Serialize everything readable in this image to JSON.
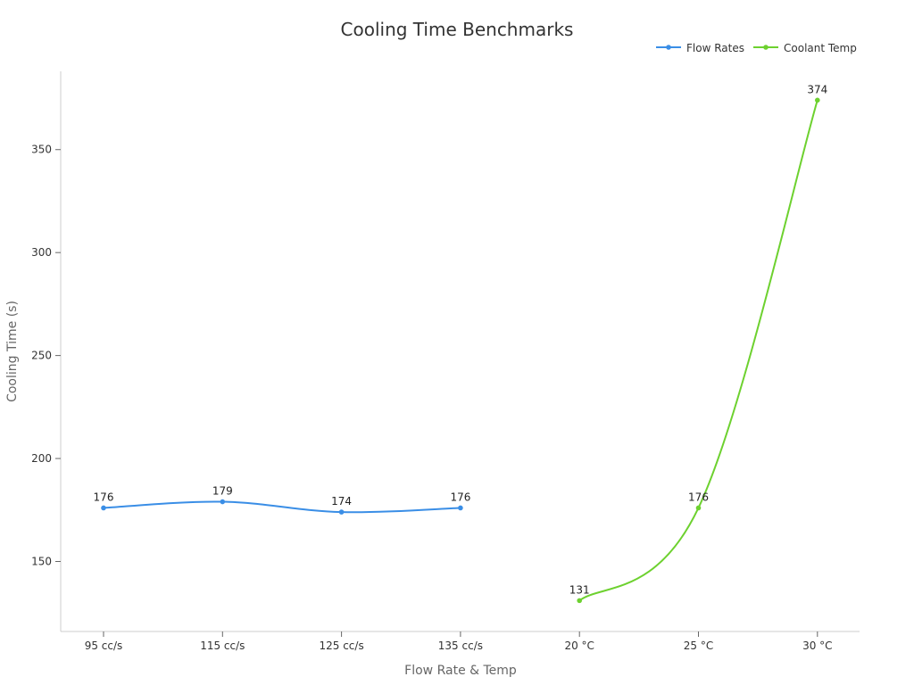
{
  "chart_data": {
    "type": "line",
    "title": "Cooling Time Benchmarks",
    "xlabel": "Flow Rate & Temp",
    "ylabel": "Cooling Time (s)",
    "categories": [
      "95 cc/s",
      "115 cc/s",
      "125 cc/s",
      "135 cc/s",
      "20 °C",
      "25 °C",
      "30 °C"
    ],
    "ylim": [
      116,
      388
    ],
    "yticks": [
      150,
      200,
      250,
      300,
      350
    ],
    "grid": false,
    "legend_position": "top-right",
    "series": [
      {
        "name": "Flow Rates",
        "color": "#3a8ee6",
        "values": [
          176,
          179,
          174,
          176,
          null,
          null,
          null
        ]
      },
      {
        "name": "Coolant Temp",
        "color": "#6dd12f",
        "values": [
          null,
          null,
          null,
          null,
          131,
          176,
          374
        ]
      }
    ]
  }
}
